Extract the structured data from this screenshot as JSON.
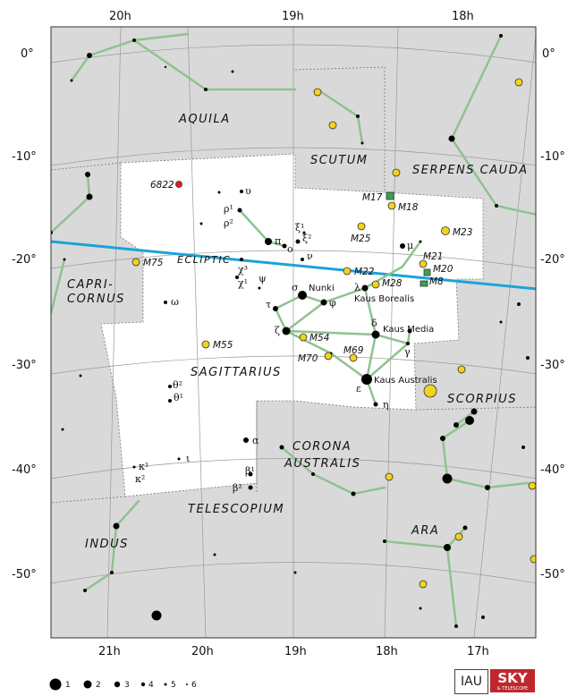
{
  "ra_labels_top": [
    "20h",
    "19h",
    "18h"
  ],
  "ra_labels_bottom": [
    "21h",
    "20h",
    "19h",
    "18h",
    "17h"
  ],
  "dec_labels": [
    "0°",
    "-10°",
    "-20°",
    "-30°",
    "-40°",
    "-50°"
  ],
  "constellations": {
    "aquila": "AQUILA",
    "scutum": "SCUTUM",
    "serpens": "SERPENS CAUDA",
    "capricornus_1": "CAPRI-",
    "capricornus_2": "CORNUS",
    "sagittarius": "SAGITTARIUS",
    "scorpius": "SCORPIUS",
    "corona_1": "CORONA",
    "corona_2": "AUSTRALIS",
    "telescopium": "TELESCOPIUM",
    "indus": "INDUS",
    "ara": "ARA"
  },
  "ecliptic_label": "ECLIPTIC",
  "objects": {
    "ngc6822": "6822",
    "m17": "M17",
    "m18": "M18",
    "m23": "M23",
    "m25": "M25",
    "m21": "M21",
    "m20": "M20",
    "m8": "M8",
    "m22": "M22",
    "m28": "M28",
    "m75": "M75",
    "m54": "M54",
    "m55": "M55",
    "m69": "M69",
    "m70": "M70"
  },
  "star_names": {
    "nunki": "Nunki",
    "kaus_borealis": "Kaus Borealis",
    "kaus_media": "Kaus Media",
    "kaus_australis": "Kaus Australis"
  },
  "greek": {
    "upsilon": "υ",
    "rho1": "ρ¹",
    "rho2": "ρ²",
    "pi": "π",
    "omicron": "ο",
    "xi1": "ξ¹",
    "xi2": "ξ²",
    "nu": "ν",
    "mu": "μ",
    "chi3": "χ³",
    "chi1": "χ¹",
    "psi": "ψ",
    "sigma": "σ",
    "tau": "τ",
    "phi": "φ",
    "lambda": "λ",
    "omega": "ω",
    "zeta": "ζ",
    "delta": "δ",
    "gamma": "γ",
    "epsilon": "ε",
    "eta": "η",
    "theta2": "θ²",
    "theta1": "θ¹",
    "alpha": "α",
    "beta1": "β¹",
    "beta2": "β²",
    "iota": "ι",
    "kappa1": "κ¹",
    "kappa2": "κ²"
  },
  "legend_magnitudes": [
    "1",
    "2",
    "3",
    "4",
    "5",
    "6"
  ],
  "logos": {
    "iau": "IAU",
    "sky": "SKY",
    "sky_sub": "& TELESCOPE"
  },
  "colors": {
    "outside_fill": "#d9d9d9",
    "main_fill": "#ffffff",
    "stick_lines": "#8fc28f",
    "ecliptic": "#1aa3d9",
    "cluster_fill": "#f2d31c",
    "nebula_fill": "#3aa34a",
    "galaxy_fill": "#e02020"
  }
}
